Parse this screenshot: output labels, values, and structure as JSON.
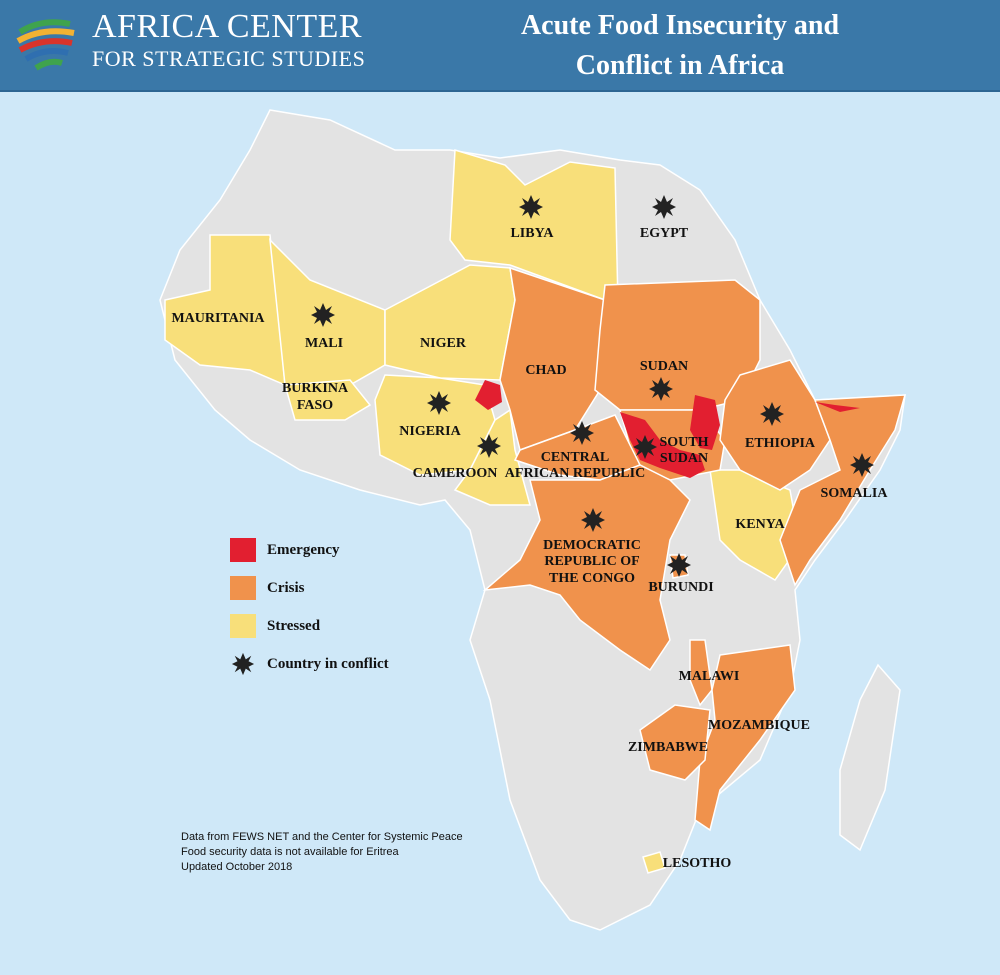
{
  "header": {
    "org_line1": "AFRICA CENTER",
    "org_line2": "FOR STRATEGIC STUDIES",
    "title_line1": "Acute Food Insecurity and",
    "title_line2": "Conflict in Africa"
  },
  "colors": {
    "ocean": "#cfe8f8",
    "land": "#e3e3e3",
    "emergency": "#e21f30",
    "crisis": "#f0924c",
    "stressed": "#f8df7a",
    "conflict": "#222222"
  },
  "legend": {
    "emergency": "Emergency",
    "crisis": "Crisis",
    "stressed": "Stressed",
    "conflict": "Country in conflict"
  },
  "countries": {
    "libya": "LIBYA",
    "egypt": "EGYPT",
    "mauritania": "MAURITANIA",
    "mali": "MALI",
    "niger": "NIGER",
    "chad": "CHAD",
    "sudan": "SUDAN",
    "burkina_1": "BURKINA",
    "burkina_2": "FASO",
    "nigeria": "NIGERIA",
    "ethiopia": "ETHIOPIA",
    "south_sudan_1": "SOUTH",
    "south_sudan_2": "SUDAN",
    "car_1": "CENTRAL",
    "car_2": "AFRICAN REPUBLIC",
    "cameroon": "CAMEROON",
    "somalia": "SOMALIA",
    "kenya": "KENYA",
    "drc_1": "DEMOCRATIC",
    "drc_2": "REPUBLIC OF",
    "drc_3": "THE CONGO",
    "burundi": "BURUNDI",
    "malawi": "MALAWI",
    "mozambique": "MOZAMBIQUE",
    "zimbabwe": "ZIMBABWE",
    "lesotho": "LESOTHO"
  },
  "notes": {
    "line1": "Data from FEWS NET and the Center for Systemic Peace",
    "line2": "Food security data is not available for Eritrea",
    "line3": "Updated October 2018"
  }
}
